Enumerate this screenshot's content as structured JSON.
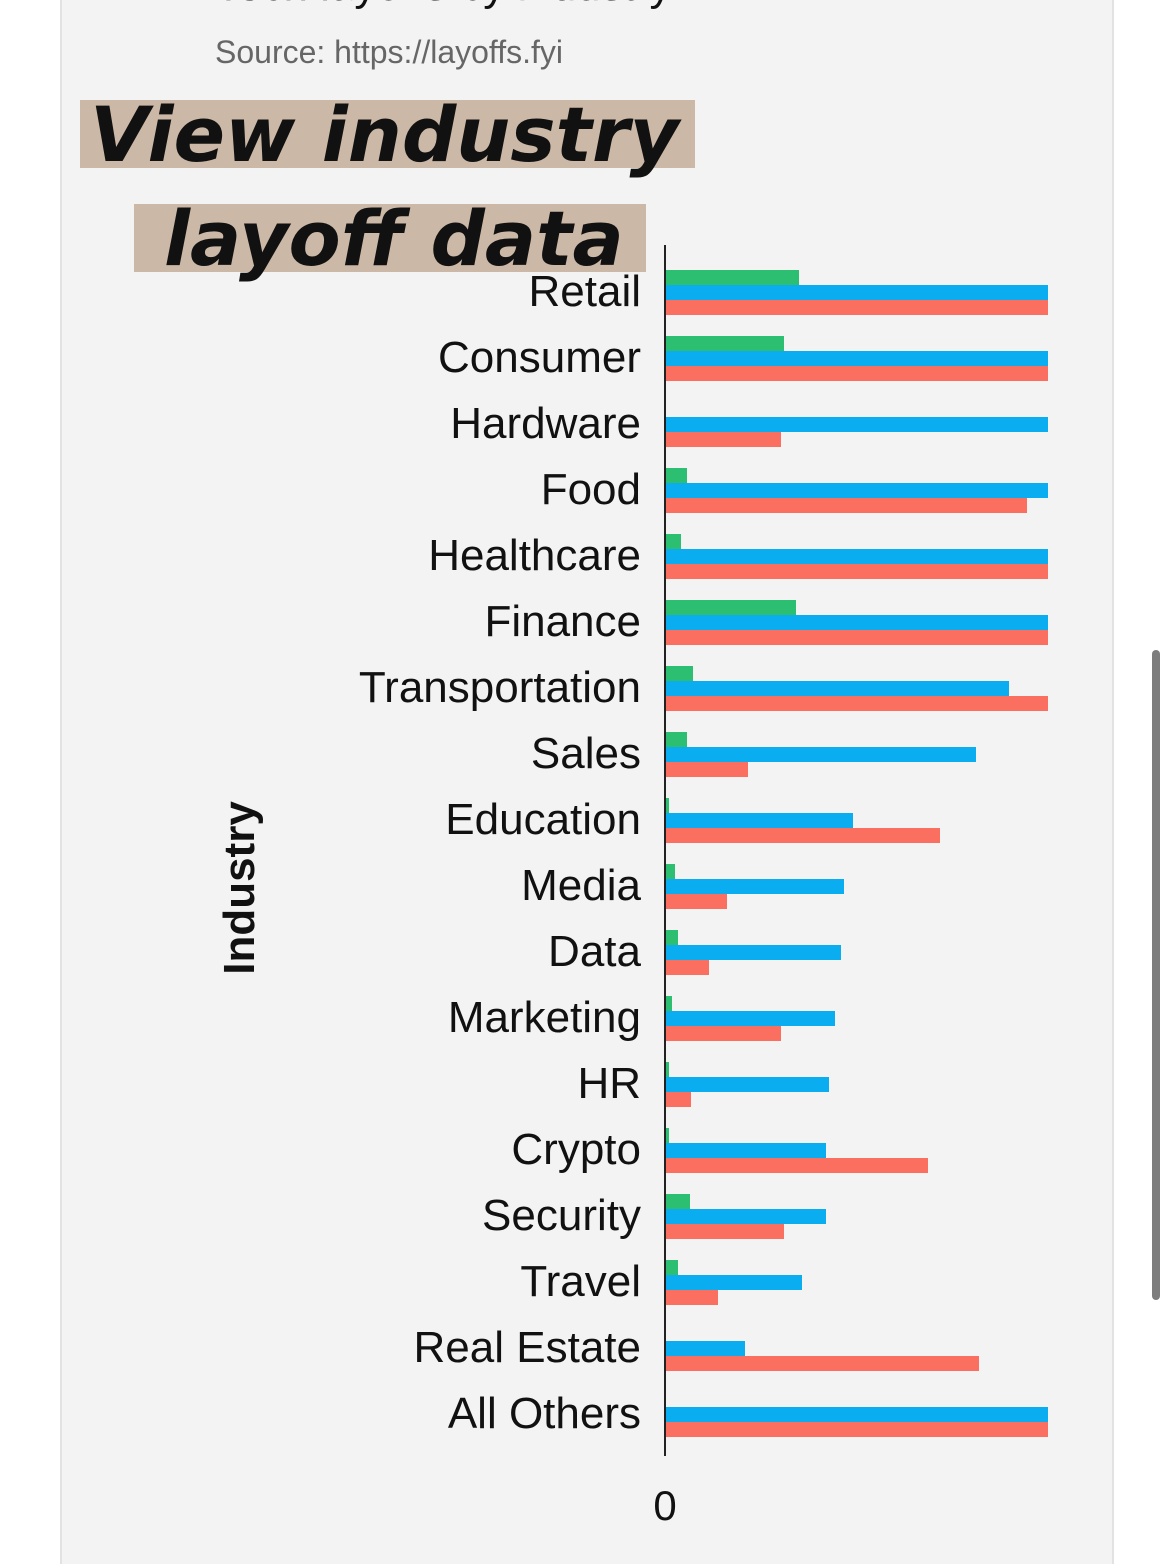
{
  "chart_data": {
    "type": "bar",
    "orientation": "horizontal",
    "title": "Tech layoffs by industry",
    "source": "Source: https://layoffs.fyi",
    "ylabel": "Industry",
    "xlabel": "",
    "x_tick_labels": [
      "0"
    ],
    "categories": [
      "Retail",
      "Consumer",
      "Hardware",
      "Food",
      "Healthcare",
      "Finance",
      "Transportation",
      "Sales",
      "Education",
      "Media",
      "Data",
      "Marketing",
      "HR",
      "Crypto",
      "Security",
      "Travel",
      "Real Estate",
      "All Others"
    ],
    "series": [
      {
        "color": "#2dbf71",
        "values": [
          134,
          119,
          0,
          22,
          16,
          131,
          28,
          22,
          4,
          10,
          13,
          7,
          4,
          4,
          25,
          13,
          0,
          0
        ]
      },
      {
        "color": "#0aaef0",
        "values": [
          383,
          383,
          383,
          383,
          383,
          383,
          344,
          311,
          188,
          179,
          176,
          170,
          164,
          161,
          161,
          137,
          80,
          383
        ]
      },
      {
        "color": "#fb6f61",
        "values": [
          383,
          383,
          116,
          362,
          383,
          383,
          383,
          83,
          275,
          62,
          44,
          116,
          26,
          263,
          119,
          53,
          314,
          383
        ]
      }
    ],
    "xlim": [
      0,
      383
    ]
  },
  "overlay": {
    "line1": "View industry",
    "line2": "layoff data"
  }
}
